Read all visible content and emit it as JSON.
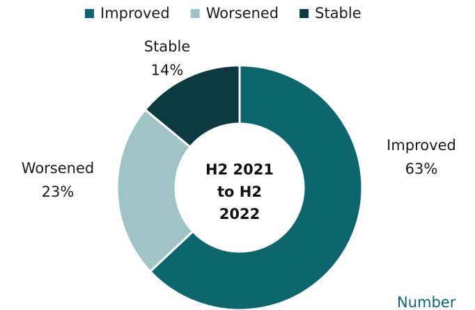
{
  "chart_data": {
    "type": "donut",
    "categories": [
      "Improved",
      "Worsened",
      "Stable"
    ],
    "values": [
      63,
      23,
      14
    ],
    "value_labels": [
      "63%",
      "23%",
      "14%"
    ],
    "colors": [
      "#0b666d",
      "#a0c4c6",
      "#0d3a40"
    ],
    "center_label": "H2 2021 to H2 2022",
    "annotation": "Number",
    "legend": "top"
  }
}
